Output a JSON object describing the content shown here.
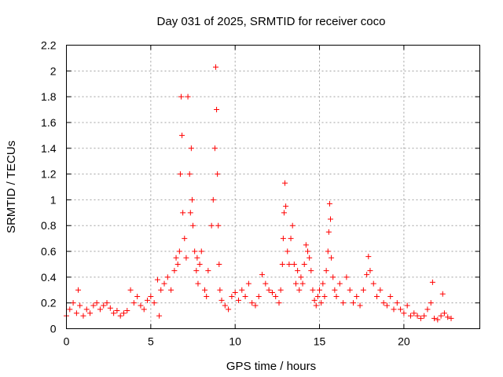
{
  "chart_data": {
    "type": "scatter",
    "title": "Day 031 of 2025, SRMTID for receiver coco",
    "xlabel": "GPS time / hours",
    "ylabel": "SRMTID / TECUs",
    "xlim": [
      0,
      24.5
    ],
    "ylim": [
      0,
      2.2
    ],
    "xticks": [
      0,
      5,
      10,
      15,
      20
    ],
    "xtick_labels": [
      "0",
      "5",
      "10",
      "15",
      "20"
    ],
    "yticks": [
      0,
      0.2,
      0.4,
      0.6,
      0.8,
      1,
      1.2,
      1.4,
      1.6,
      1.8,
      2,
      2.2
    ],
    "ytick_labels": [
      "0",
      "0.2",
      "0.4",
      "0.6",
      "0.8",
      "1",
      "1.2",
      "1.4",
      "1.6",
      "1.8",
      "2",
      "2.2"
    ],
    "grid": true,
    "marker": "+",
    "color": "#ff0000",
    "series": [
      {
        "name": "SRMTID",
        "x": [
          0.0,
          0.2,
          0.4,
          0.6,
          0.7,
          0.8,
          1.0,
          1.2,
          1.4,
          1.6,
          1.8,
          2.0,
          2.2,
          2.4,
          2.6,
          2.8,
          3.0,
          3.2,
          3.4,
          3.6,
          3.8,
          4.0,
          4.2,
          4.4,
          4.6,
          4.8,
          5.0,
          5.2,
          5.4,
          5.5,
          5.6,
          5.8,
          6.0,
          6.2,
          6.4,
          6.5,
          6.6,
          6.7,
          6.75,
          6.8,
          6.85,
          6.9,
          7.0,
          7.1,
          7.2,
          7.3,
          7.35,
          7.4,
          7.45,
          7.5,
          7.6,
          7.7,
          7.75,
          7.8,
          7.9,
          8.0,
          8.2,
          8.3,
          8.4,
          8.6,
          8.7,
          8.8,
          8.85,
          8.9,
          8.95,
          9.0,
          9.05,
          9.1,
          9.2,
          9.4,
          9.6,
          9.8,
          10.0,
          10.2,
          10.4,
          10.6,
          10.8,
          11.0,
          11.2,
          11.4,
          11.6,
          11.8,
          12.0,
          12.2,
          12.4,
          12.6,
          12.7,
          12.8,
          12.85,
          12.9,
          12.95,
          13.0,
          13.1,
          13.2,
          13.3,
          13.4,
          13.5,
          13.6,
          13.7,
          13.8,
          13.9,
          14.0,
          14.1,
          14.2,
          14.3,
          14.4,
          14.5,
          14.6,
          14.7,
          14.8,
          14.9,
          15.0,
          15.1,
          15.2,
          15.3,
          15.4,
          15.5,
          15.55,
          15.6,
          15.65,
          15.7,
          15.8,
          15.9,
          16.0,
          16.2,
          16.4,
          16.6,
          16.8,
          17.0,
          17.2,
          17.4,
          17.6,
          17.8,
          17.9,
          18.0,
          18.2,
          18.4,
          18.6,
          18.8,
          19.0,
          19.2,
          19.4,
          19.6,
          19.8,
          20.0,
          20.2,
          20.4,
          20.6,
          20.8,
          21.0,
          21.2,
          21.4,
          21.6,
          21.7,
          21.8,
          22.0,
          22.2,
          22.3,
          22.4,
          22.6,
          22.8
        ],
        "y": [
          0.1,
          0.15,
          0.2,
          0.12,
          0.3,
          0.18,
          0.1,
          0.15,
          0.12,
          0.18,
          0.2,
          0.15,
          0.18,
          0.2,
          0.16,
          0.12,
          0.14,
          0.1,
          0.12,
          0.14,
          0.3,
          0.2,
          0.25,
          0.18,
          0.15,
          0.22,
          0.25,
          0.2,
          0.38,
          0.1,
          0.3,
          0.35,
          0.4,
          0.3,
          0.45,
          0.55,
          0.5,
          0.6,
          1.2,
          1.8,
          1.5,
          0.9,
          0.7,
          0.55,
          1.8,
          1.2,
          0.9,
          1.4,
          1.0,
          0.8,
          0.6,
          0.45,
          0.55,
          0.35,
          0.5,
          0.6,
          0.3,
          0.25,
          0.45,
          0.8,
          1.0,
          1.4,
          2.03,
          1.7,
          1.2,
          0.8,
          0.5,
          0.3,
          0.22,
          0.18,
          0.15,
          0.25,
          0.28,
          0.22,
          0.3,
          0.25,
          0.35,
          0.2,
          0.18,
          0.25,
          0.42,
          0.35,
          0.3,
          0.28,
          0.25,
          0.2,
          0.3,
          0.5,
          0.7,
          0.9,
          1.13,
          0.95,
          0.6,
          0.5,
          0.7,
          0.8,
          0.5,
          0.35,
          0.45,
          0.3,
          0.4,
          0.35,
          0.5,
          0.65,
          0.6,
          0.55,
          0.45,
          0.3,
          0.22,
          0.18,
          0.25,
          0.3,
          0.2,
          0.35,
          0.25,
          0.45,
          0.6,
          0.75,
          0.97,
          0.85,
          0.55,
          0.4,
          0.3,
          0.25,
          0.35,
          0.2,
          0.4,
          0.3,
          0.2,
          0.25,
          0.18,
          0.3,
          0.42,
          0.56,
          0.45,
          0.35,
          0.25,
          0.3,
          0.2,
          0.18,
          0.25,
          0.15,
          0.2,
          0.15,
          0.12,
          0.18,
          0.1,
          0.12,
          0.1,
          0.08,
          0.1,
          0.15,
          0.2,
          0.36,
          0.08,
          0.07,
          0.1,
          0.27,
          0.12,
          0.09,
          0.08
        ]
      }
    ]
  }
}
